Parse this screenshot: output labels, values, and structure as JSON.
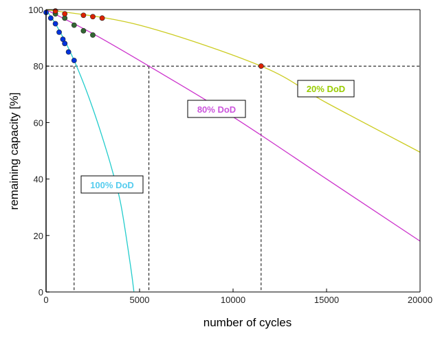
{
  "chart_data": {
    "type": "line",
    "xlabel": "number of cycles",
    "ylabel": "remaining capacity [%]",
    "xlim": [
      0,
      20000
    ],
    "ylim": [
      0,
      100
    ],
    "xticks": [
      0,
      5000,
      10000,
      15000,
      20000
    ],
    "xtick_labels": [
      "0",
      "5000",
      "10000",
      "15000",
      "20000"
    ],
    "yticks": [
      0,
      20,
      40,
      60,
      80,
      100
    ],
    "ytick_labels": [
      "0",
      "20",
      "40",
      "60",
      "80",
      "100"
    ],
    "reference_line_y": 80,
    "reference_lines_x": [
      1500,
      5500,
      11500
    ],
    "series": [
      {
        "name": "100% DoD",
        "color": "#22cccc",
        "label_color": "#55ccee",
        "curve_x": [
          0,
          500,
          1000,
          1500,
          2000,
          2500,
          3000,
          3500,
          4000,
          4500,
          4700
        ],
        "curve_y": [
          100,
          95,
          89,
          82,
          74,
          65,
          55,
          44,
          31,
          10,
          0
        ],
        "points_x": [
          0,
          250,
          500,
          700,
          900,
          1000,
          1200,
          1500
        ],
        "points_y": [
          99,
          97,
          95,
          92,
          89.5,
          88,
          85,
          82
        ],
        "marker_color": "#0033dd"
      },
      {
        "name": "80% DoD",
        "color": "#cc33cc",
        "label_color": "#cc55dd",
        "curve_x": [
          0,
          2500,
          5500,
          10000,
          15000,
          20000
        ],
        "curve_y": [
          100,
          91.5,
          80,
          62,
          40,
          18
        ],
        "points_x": [
          500,
          1000,
          1500,
          2000,
          2500
        ],
        "points_y": [
          98.5,
          97,
          94.5,
          92.5,
          91
        ],
        "marker_color": "#336633"
      },
      {
        "name": "20% DoD",
        "color": "#cccc22",
        "label_color": "#99cc00",
        "curve_x": [
          0,
          5000,
          11500,
          15000,
          20000
        ],
        "curve_y": [
          100,
          94.5,
          80,
          67,
          49.5
        ],
        "points_x": [
          500,
          1000,
          2000,
          2500,
          3000,
          11500
        ],
        "points_y": [
          99.5,
          98.5,
          98,
          97.5,
          97,
          80
        ],
        "marker_color": "#dd2200"
      }
    ]
  }
}
